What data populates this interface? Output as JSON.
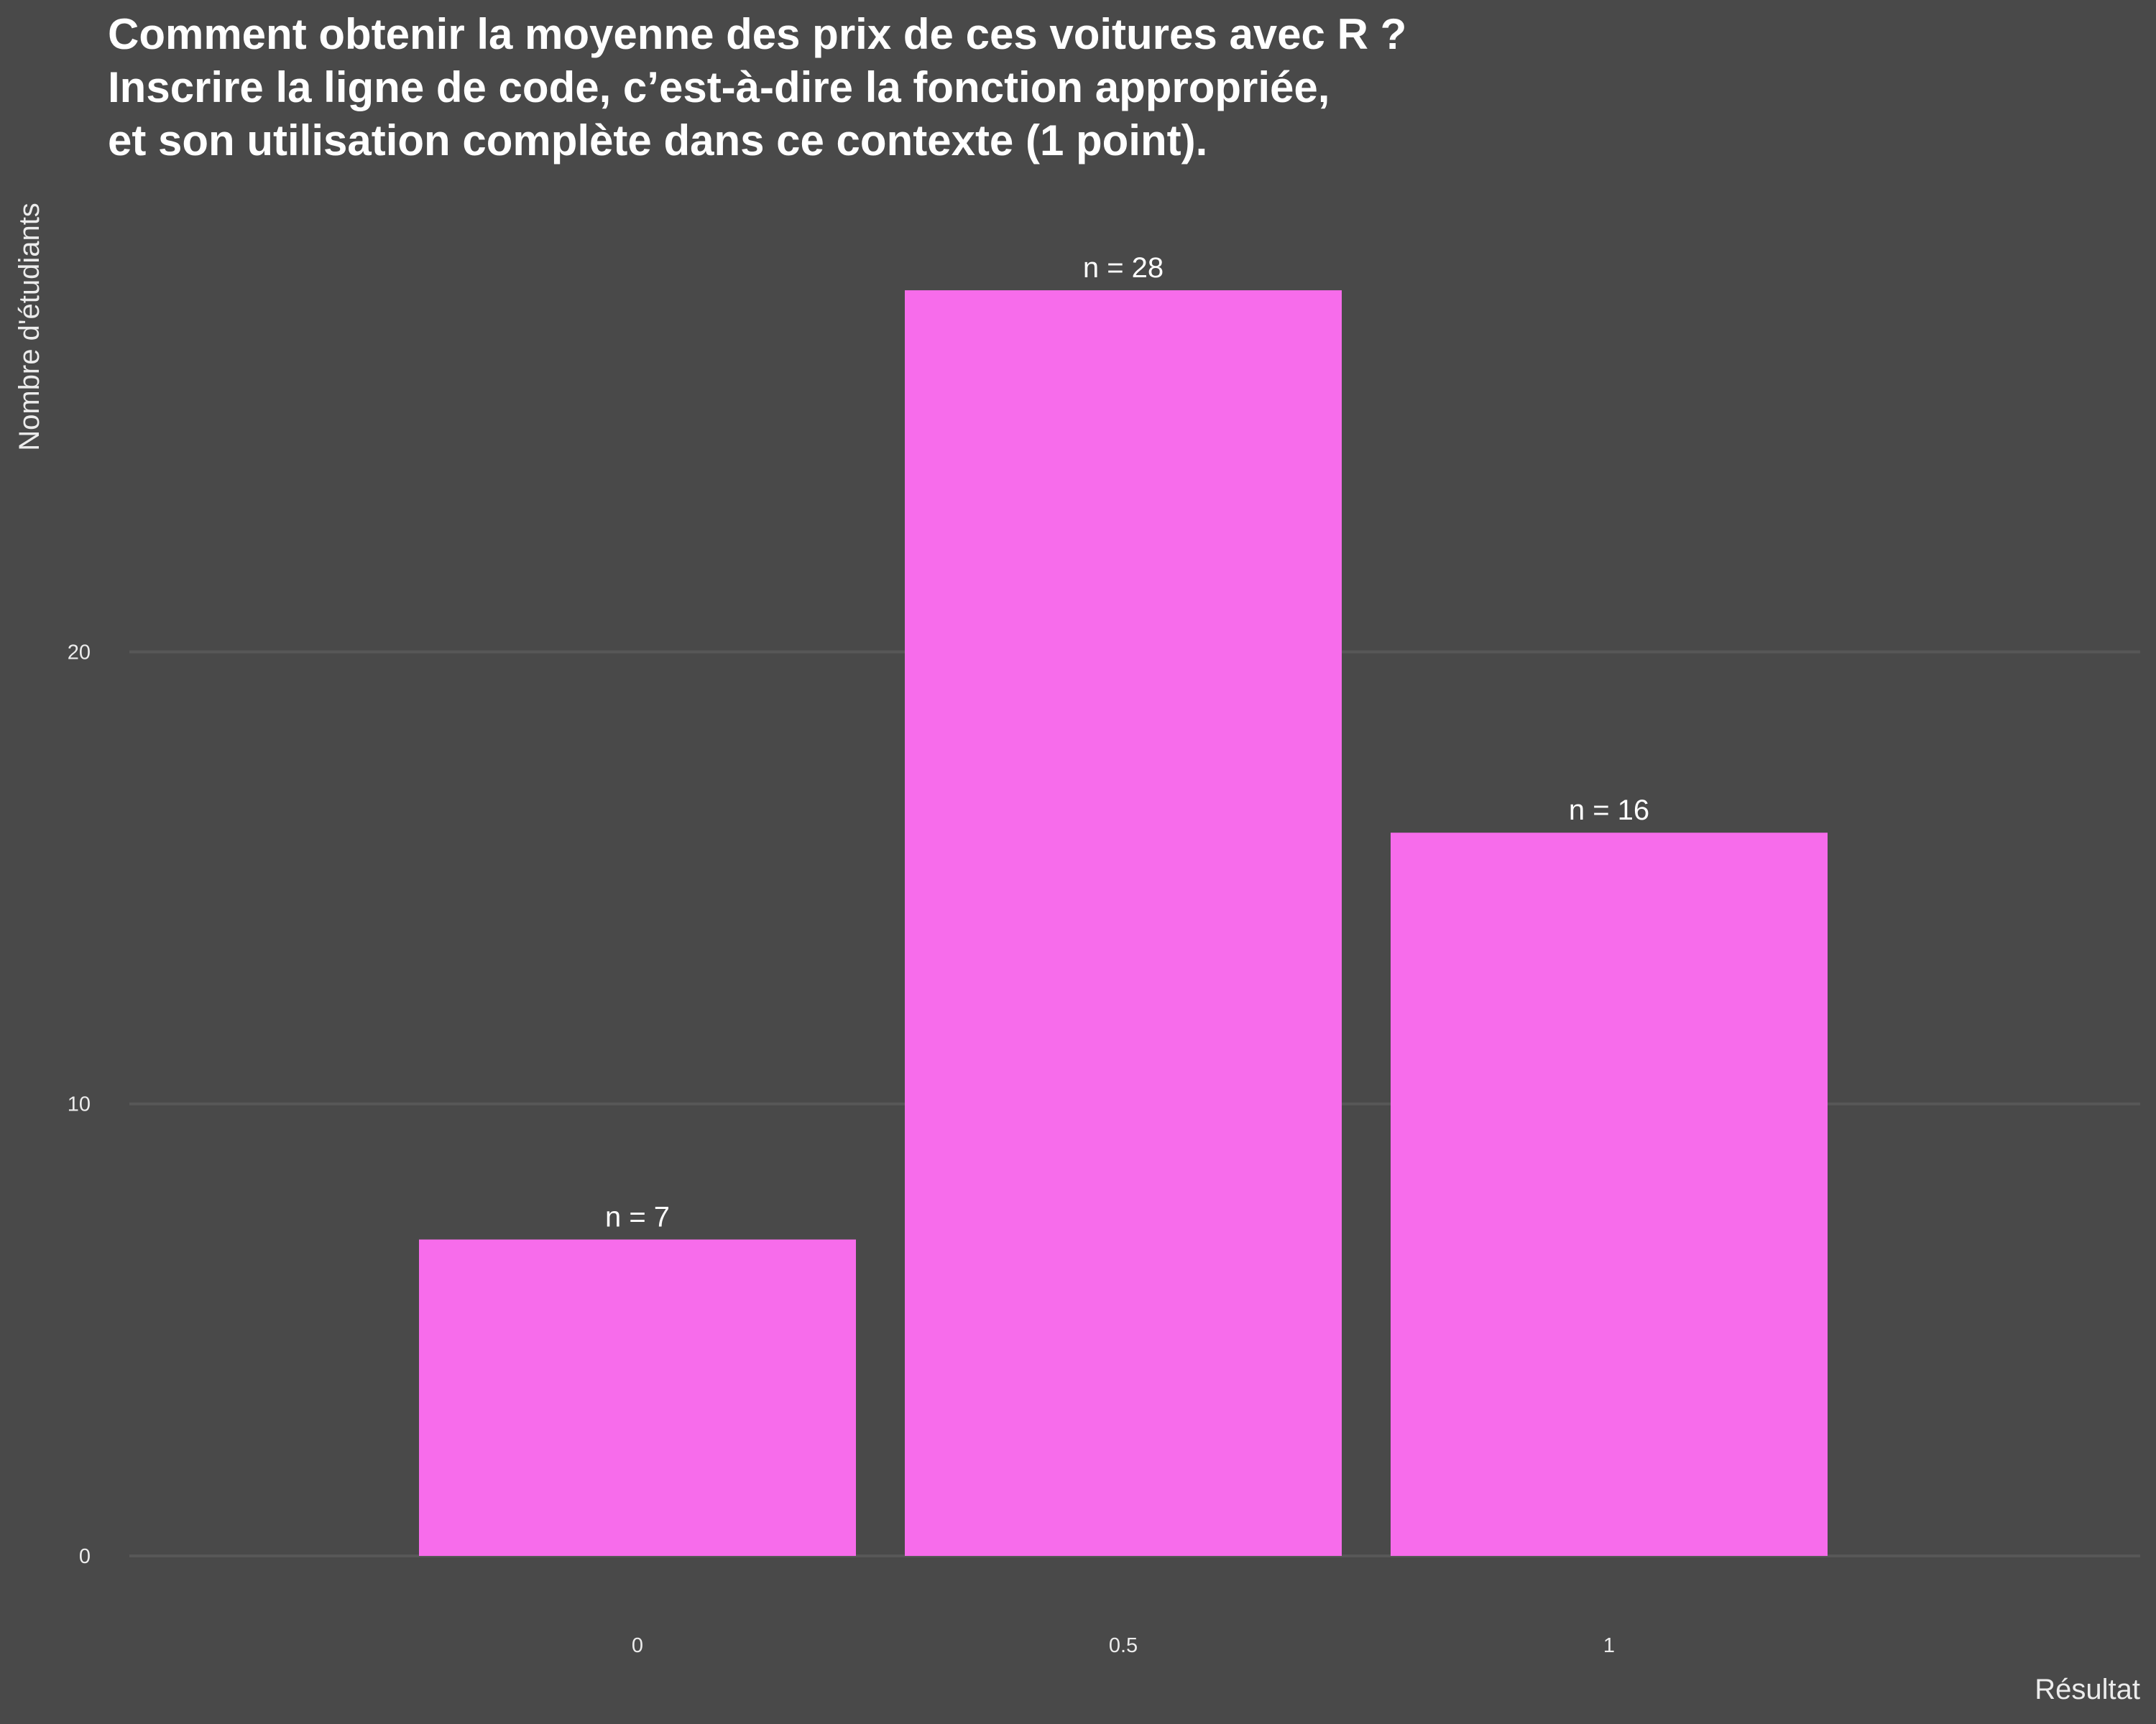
{
  "chart_data": {
    "type": "bar",
    "title_lines": [
      "Comment obtenir la moyenne des prix de ces voitures avec R ?",
      "Inscrire la ligne de code, c’est-à-dire la fonction appropriée,",
      "et son utilisation complète dans ce contexte (1 point)."
    ],
    "xlabel": "Résultat",
    "ylabel": "Nombre d'étudiants",
    "categories": [
      "0",
      "0.5",
      "1"
    ],
    "values": [
      7,
      28,
      16
    ],
    "data_labels": [
      "n = 7",
      "n = 28",
      "n = 16"
    ],
    "y_ticks": [
      0,
      10,
      20
    ],
    "ylim": [
      0,
      29.4
    ],
    "grid": true,
    "legend": "none",
    "colors": {
      "bar": "#f76ceb",
      "background": "#494949",
      "grid": "#575757",
      "text": "#ececec"
    }
  }
}
